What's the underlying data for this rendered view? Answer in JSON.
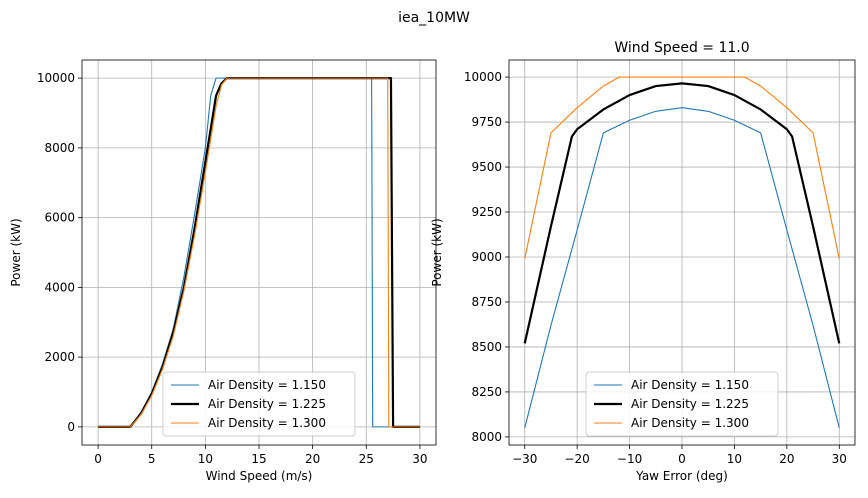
{
  "figure_title": "iea_10MW",
  "legend_labels": [
    "Air Density = 1.150",
    "Air Density = 1.225",
    "Air Density = 1.300"
  ],
  "colors": {
    "series_a": "#1f77b4",
    "series_b": "#000000",
    "series_c": "#ff7f0e",
    "grid": "#b0b0b0"
  },
  "chart_data": [
    {
      "type": "line",
      "title": "",
      "xlabel": "Wind Speed (m/s)",
      "ylabel": "Power (kW)",
      "xlim": [
        -1.5,
        31.5
      ],
      "ylim": [
        -520,
        10520
      ],
      "xticks": [
        0,
        5,
        10,
        15,
        20,
        25,
        30
      ],
      "yticks": [
        0,
        2000,
        4000,
        6000,
        8000,
        10000
      ],
      "grid": true,
      "legend_position": "lower center",
      "series": [
        {
          "name": "Air Density = 1.150",
          "x": [
            0,
            3,
            4,
            5,
            6,
            7,
            8,
            9,
            10,
            10.5,
            11,
            11.5,
            25.5,
            25.6,
            30
          ],
          "y": [
            0,
            0,
            420,
            1000,
            1800,
            2800,
            4300,
            6100,
            8000,
            9500,
            10000,
            10000,
            10000,
            0,
            0
          ]
        },
        {
          "name": "Air Density = 1.225",
          "x": [
            0,
            3,
            4,
            5,
            6,
            7,
            8,
            9,
            10,
            11,
            11.5,
            12,
            27.3,
            27.5,
            30
          ],
          "y": [
            0,
            0,
            380,
            950,
            1700,
            2700,
            4000,
            5700,
            7600,
            9500,
            9850,
            10000,
            10000,
            0,
            0
          ]
        },
        {
          "name": "Air Density = 1.300",
          "x": [
            0,
            3,
            4,
            5,
            6,
            7,
            8,
            9,
            10,
            11,
            11.5,
            12,
            27.0,
            27.1,
            30
          ],
          "y": [
            0,
            0,
            350,
            900,
            1650,
            2600,
            3900,
            5500,
            7300,
            9200,
            9800,
            10000,
            10000,
            0,
            0
          ]
        }
      ]
    },
    {
      "type": "line",
      "title": "Wind Speed = 11.0",
      "xlabel": "Yaw Error (deg)",
      "ylabel": "Power (kW)",
      "xlim": [
        -33,
        33
      ],
      "ylim": [
        7955,
        10095
      ],
      "xticks": [
        -30,
        -20,
        -10,
        0,
        10,
        20,
        30
      ],
      "yticks": [
        8000,
        8250,
        8500,
        8750,
        9000,
        9250,
        9500,
        9750,
        10000
      ],
      "grid": true,
      "legend_position": "lower center",
      "series": [
        {
          "name": "Air Density = 1.150",
          "x": [
            -30,
            -25,
            -20,
            -15,
            -10,
            -5,
            0,
            5,
            10,
            15,
            20,
            25,
            30
          ],
          "y": [
            8050,
            8620,
            9150,
            9690,
            9760,
            9810,
            9830,
            9810,
            9760,
            9690,
            9150,
            8620,
            8050
          ]
        },
        {
          "name": "Air Density = 1.225",
          "x": [
            -30,
            -25,
            -21,
            -20,
            -15,
            -10,
            -5,
            0,
            5,
            10,
            15,
            20,
            21,
            25,
            30
          ],
          "y": [
            8520,
            9170,
            9670,
            9710,
            9820,
            9900,
            9950,
            9965,
            9950,
            9900,
            9820,
            9710,
            9670,
            9170,
            8520
          ]
        },
        {
          "name": "Air Density = 1.300",
          "x": [
            -30,
            -25,
            -20,
            -15,
            -12,
            0,
            12,
            15,
            20,
            25,
            30
          ],
          "y": [
            8990,
            9690,
            9830,
            9950,
            10000,
            10000,
            10000,
            9950,
            9830,
            9690,
            8990
          ]
        }
      ]
    }
  ]
}
